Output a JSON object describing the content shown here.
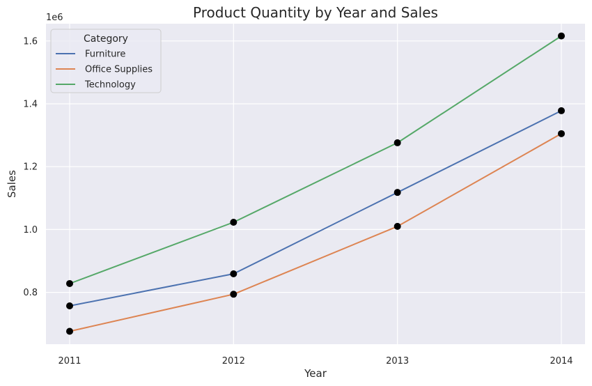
{
  "chart_data": {
    "type": "line",
    "title": "Product Quantity by Year and Sales",
    "xlabel": "Year",
    "ylabel": "Sales",
    "y_offset_label": "1e6",
    "x": [
      2011,
      2012,
      2013,
      2014
    ],
    "x_tick_labels": [
      "2011",
      "2012",
      "2013",
      "2014"
    ],
    "y_ticks": [
      0.8,
      1.0,
      1.2,
      1.4,
      1.6
    ],
    "y_tick_labels": [
      "0.8",
      "1.0",
      "1.2",
      "1.4",
      "1.6"
    ],
    "ylim": [
      0.635,
      1.655
    ],
    "y_scale": 1000000,
    "grid": true,
    "legend": {
      "title": "Category",
      "placement": "top-left"
    },
    "marker_color": "#000000",
    "series": [
      {
        "name": "Furniture",
        "color": "#4c72b0",
        "values": [
          0.757,
          0.859,
          1.118,
          1.378
        ]
      },
      {
        "name": "Office Supplies",
        "color": "#dd8452",
        "values": [
          0.676,
          0.794,
          1.01,
          1.305
        ]
      },
      {
        "name": "Technology",
        "color": "#55a868",
        "values": [
          0.828,
          1.023,
          1.276,
          1.616
        ]
      }
    ]
  }
}
